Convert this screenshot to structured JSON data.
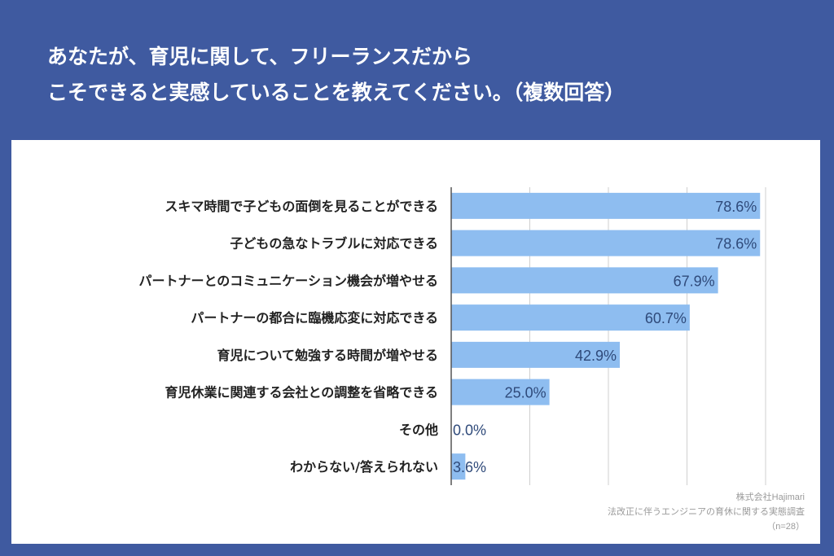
{
  "title_lines": [
    "あなたが、育児に関して、フリーランスだから",
    "こそできると実感していることを教えてください。（複数回答）"
  ],
  "chart_data": {
    "type": "bar",
    "orientation": "horizontal",
    "categories": [
      "スキマ時間で子どもの面倒を見ることができる",
      "子どもの急なトラブルに対応できる",
      "パートナーとのコミュニケーション機会が増やせる",
      "パートナーの都合に臨機応変に対応できる",
      "育児について勉強する時間が増やせる",
      "育児休業に関連する会社との調整を省略できる",
      "その他",
      "わからない/答えられない"
    ],
    "values": [
      78.6,
      78.6,
      67.9,
      60.7,
      42.9,
      25.0,
      0.0,
      3.6
    ],
    "value_labels": [
      "78.6%",
      "78.6%",
      "67.9%",
      "60.7%",
      "42.9%",
      "25.0%",
      "0.0%",
      "3.6%"
    ],
    "xlim": [
      0,
      80
    ],
    "grid": true,
    "bar_color": "#8ebdf0",
    "label_color": "#2f4a7a"
  },
  "footer": {
    "company": "株式会社Hajimari",
    "survey": "法改正に伴うエンジニアの育休に関する実態調査",
    "sample": "（n=28）"
  },
  "colors": {
    "background": "#3f5aa0",
    "panel": "#ffffff"
  }
}
